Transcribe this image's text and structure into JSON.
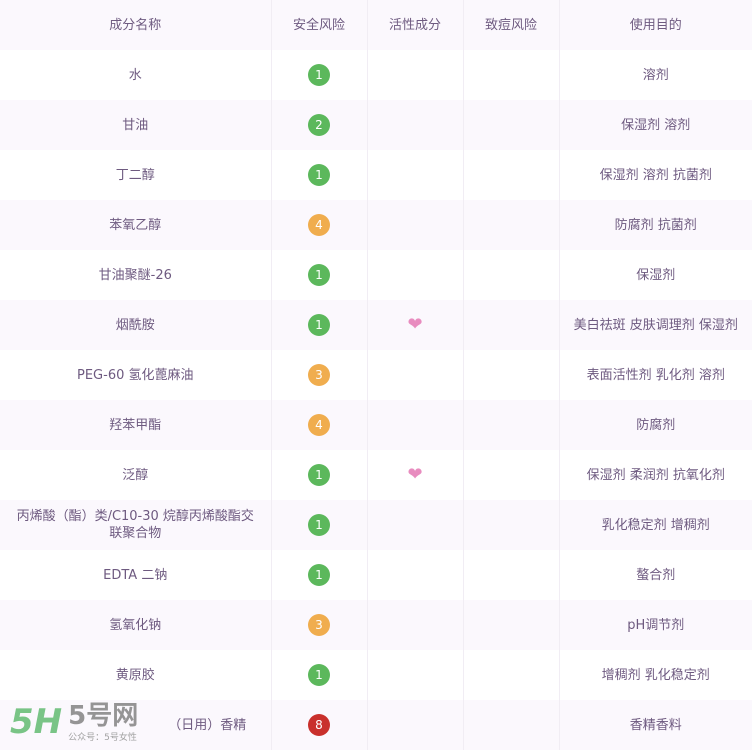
{
  "headers": [
    "成分名称",
    "安全风险",
    "活性成分",
    "致痘风险",
    "使用目的"
  ],
  "colors": {
    "green": "#5cb85c",
    "orange": "#f0ad4e",
    "red": "#c9302c",
    "heart": "#e88cbf"
  },
  "rows": [
    {
      "name": "水",
      "risk": "1",
      "level": "green",
      "active": false,
      "acne": "",
      "purpose": "溶剂"
    },
    {
      "name": "甘油",
      "risk": "2",
      "level": "green",
      "active": false,
      "acne": "",
      "purpose": "保湿剂 溶剂"
    },
    {
      "name": "丁二醇",
      "risk": "1",
      "level": "green",
      "active": false,
      "acne": "",
      "purpose": "保湿剂 溶剂 抗菌剂"
    },
    {
      "name": "苯氧乙醇",
      "risk": "4",
      "level": "orange",
      "active": false,
      "acne": "",
      "purpose": "防腐剂 抗菌剂"
    },
    {
      "name": "甘油聚醚-26",
      "risk": "1",
      "level": "green",
      "active": false,
      "acne": "",
      "purpose": "保湿剂"
    },
    {
      "name": "烟酰胺",
      "risk": "1",
      "level": "green",
      "active": true,
      "acne": "",
      "purpose": "美白祛斑 皮肤调理剂 保湿剂"
    },
    {
      "name": "PEG-60 氢化蓖麻油",
      "risk": "3",
      "level": "orange",
      "active": false,
      "acne": "",
      "purpose": "表面活性剂 乳化剂 溶剂"
    },
    {
      "name": "羟苯甲酯",
      "risk": "4",
      "level": "orange",
      "active": false,
      "acne": "",
      "purpose": "防腐剂"
    },
    {
      "name": "泛醇",
      "risk": "1",
      "level": "green",
      "active": true,
      "acne": "",
      "purpose": "保湿剂 柔润剂 抗氧化剂"
    },
    {
      "name": "丙烯酸（酯）类/C10-30 烷醇丙烯酸酯交联聚合物",
      "risk": "1",
      "level": "green",
      "active": false,
      "acne": "",
      "purpose": "乳化稳定剂 增稠剂"
    },
    {
      "name": "EDTA 二钠",
      "risk": "1",
      "level": "green",
      "active": false,
      "acne": "",
      "purpose": "螯合剂"
    },
    {
      "name": "氢氧化钠",
      "risk": "3",
      "level": "orange",
      "active": false,
      "acne": "",
      "purpose": "pH调节剂"
    },
    {
      "name": "黄原胶",
      "risk": "1",
      "level": "green",
      "active": false,
      "acne": "",
      "purpose": "增稠剂 乳化稳定剂"
    },
    {
      "name": "（日用）香精",
      "risk": "8",
      "level": "red",
      "active": false,
      "acne": "",
      "purpose": "香精香料"
    }
  ],
  "watermark": {
    "logo": "5H",
    "site": "5号网",
    "account": "公众号：5号女性"
  }
}
